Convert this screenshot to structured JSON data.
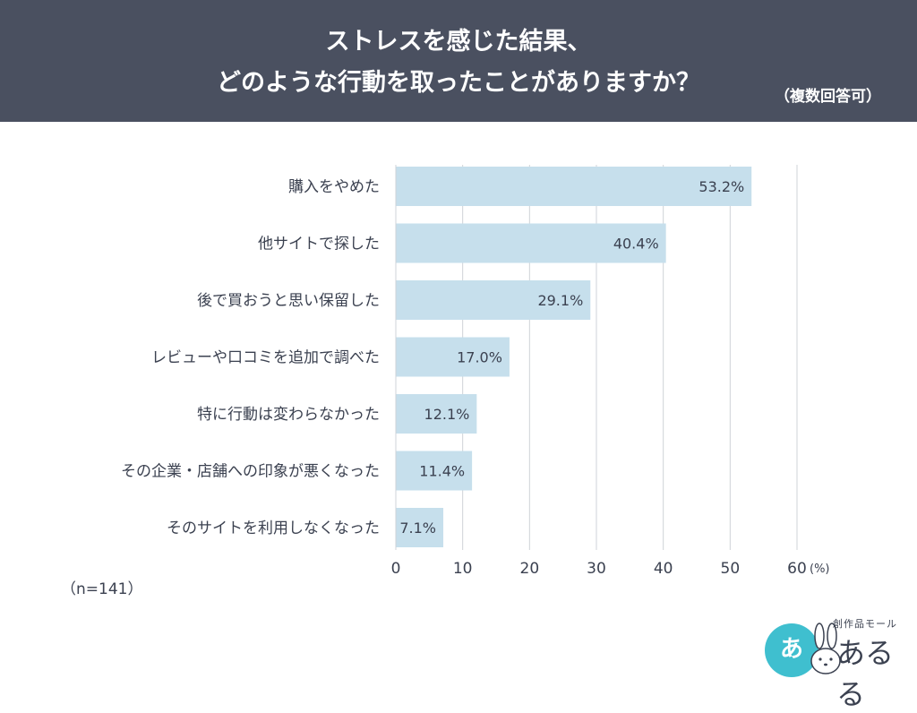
{
  "header": {
    "title_line1": "ストレスを感じた結果、",
    "title_line2": "どのような行動を取ったことがありますか？",
    "note": "（複数回答可）"
  },
  "sample_size": "（n=141）",
  "logo": {
    "circle_text": "あ",
    "sub_text": "創作品モール",
    "main_text": "あるる"
  },
  "colors": {
    "header_bg": "#4a5060",
    "bar": "#c6dfec",
    "grid": "#cfd3d8",
    "text": "#3b4150",
    "logo_accent": "#3fbfcf"
  },
  "chart_data": {
    "type": "bar",
    "orientation": "horizontal",
    "categories": [
      "購入をやめた",
      "他サイトで探した",
      "後で買おうと思い保留した",
      "レビューや口コミを追加で調べた",
      "特に行動は変わらなかった",
      "その企業・店舗への印象が悪くなった",
      "そのサイトを利用しなくなった"
    ],
    "values": [
      53.2,
      40.4,
      29.1,
      17.0,
      12.1,
      11.4,
      7.1
    ],
    "data_labels": [
      "53.2%",
      "40.4%",
      "29.1%",
      "17.0%",
      "12.1%",
      "11.4%",
      "7.1%"
    ],
    "xlim": [
      0,
      60
    ],
    "xticks": [
      0,
      10,
      20,
      30,
      40,
      50,
      60
    ],
    "xtick_labels": [
      "0",
      "10",
      "20",
      "30",
      "40",
      "50",
      "60"
    ],
    "x_unit": "(%)",
    "grid": true
  }
}
